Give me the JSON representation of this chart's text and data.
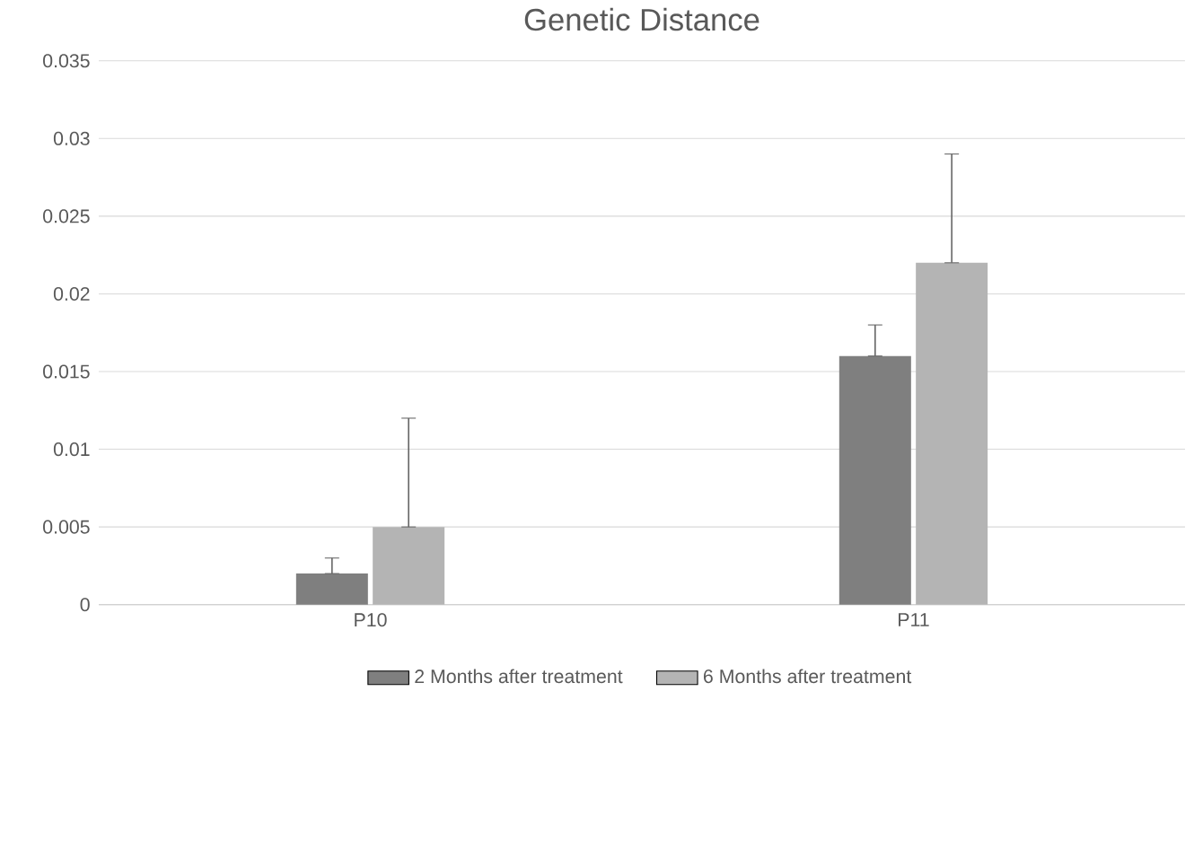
{
  "chart_data": {
    "type": "bar",
    "title": "Genetic Distance",
    "categories": [
      "P10",
      "P11"
    ],
    "series": [
      {
        "name": "2 Months after treatment",
        "color": "#7f7f7f",
        "values": [
          0.002,
          0.016
        ],
        "errors": [
          [
            0.002,
            0.003
          ],
          [
            0.016,
            0.018
          ]
        ]
      },
      {
        "name": "6 Months after treatment",
        "color": "#b4b4b4",
        "values": [
          0.005,
          0.022
        ],
        "errors": [
          [
            0.005,
            0.012
          ],
          [
            0.022,
            0.029
          ]
        ]
      }
    ],
    "ylim": [
      0,
      0.035
    ],
    "yticks": [
      0,
      0.005,
      0.01,
      0.015,
      0.02,
      0.025,
      0.03,
      0.035
    ],
    "grid": "y",
    "legend": "bottom"
  }
}
